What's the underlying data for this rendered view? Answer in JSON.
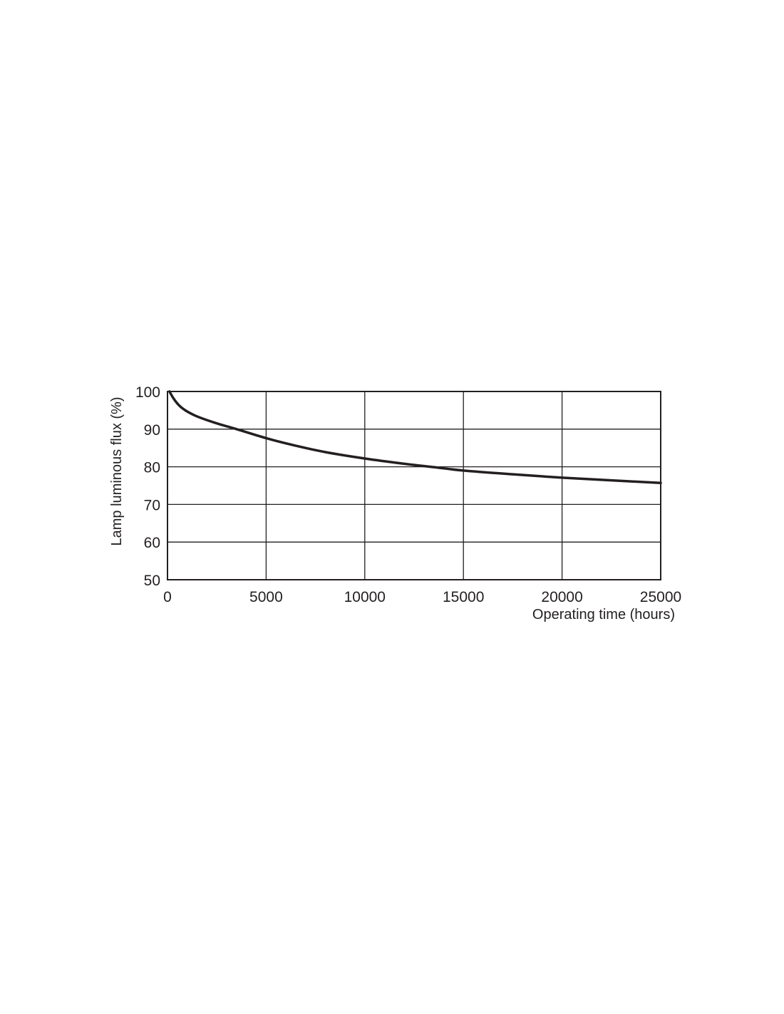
{
  "chart_data": {
    "type": "line",
    "title": "",
    "xlabel": "Operating time (hours)",
    "ylabel": "Lamp luminous flux (%)",
    "xlim": [
      0,
      25000
    ],
    "ylim": [
      50,
      100
    ],
    "xticks": [
      "0",
      "5000",
      "10000",
      "15000",
      "20000",
      "25000"
    ],
    "yticks": [
      "50",
      "60",
      "70",
      "80",
      "90",
      "100"
    ],
    "grid": true,
    "line_color": "#231f20",
    "series": [
      {
        "x": [
          100,
          300,
          570,
          900,
          1400,
          2000,
          2700,
          3500,
          5000,
          6500,
          8000,
          10000,
          12000,
          13500,
          15000,
          17500,
          20000,
          22500,
          25000
        ],
        "y": [
          100,
          98.2,
          96.4,
          95.0,
          93.6,
          92.4,
          91.2,
          90.0,
          87.6,
          85.6,
          83.9,
          82.2,
          80.8,
          79.9,
          79.0,
          78.0,
          77.1,
          76.4,
          75.7
        ]
      }
    ]
  }
}
